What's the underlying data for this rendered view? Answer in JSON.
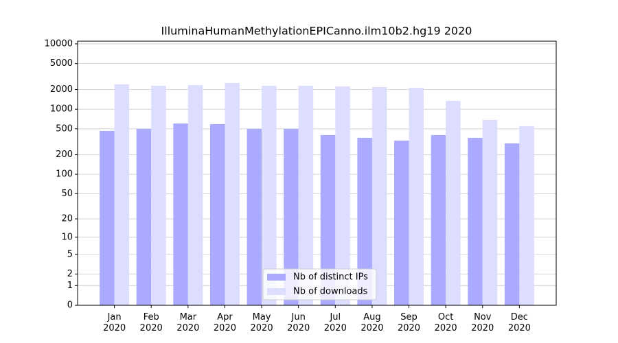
{
  "chart_data": {
    "type": "bar",
    "title": "IlluminaHumanMethylationEPICanno.ilm10b2.hg19 2020",
    "categories": [
      "Jan\n2020",
      "Feb\n2020",
      "Mar\n2020",
      "Apr\n2020",
      "May\n2020",
      "Jun\n2020",
      "Jul\n2020",
      "Aug\n2020",
      "Sep\n2020",
      "Oct\n2020",
      "Nov\n2020",
      "Dec\n2020"
    ],
    "series": [
      {
        "name": "Nb of distinct IPs",
        "color": "#aaaaff",
        "values": [
          464,
          498,
          605,
          591,
          498,
          498,
          401,
          364,
          330,
          401,
          364,
          299
        ]
      },
      {
        "name": "Nb of downloads",
        "color": "#ddddff",
        "values": [
          2403,
          2290,
          2343,
          2521,
          2290,
          2290,
          2233,
          2182,
          2128,
          1344,
          683,
          549
        ]
      }
    ],
    "yscale": "log1p",
    "ylim": [
      0,
      11000
    ],
    "yticks": [
      0,
      1,
      2,
      5,
      10,
      20,
      50,
      100,
      200,
      500,
      1000,
      2000,
      5000,
      10000
    ],
    "grid": true,
    "legend": "lower center"
  }
}
